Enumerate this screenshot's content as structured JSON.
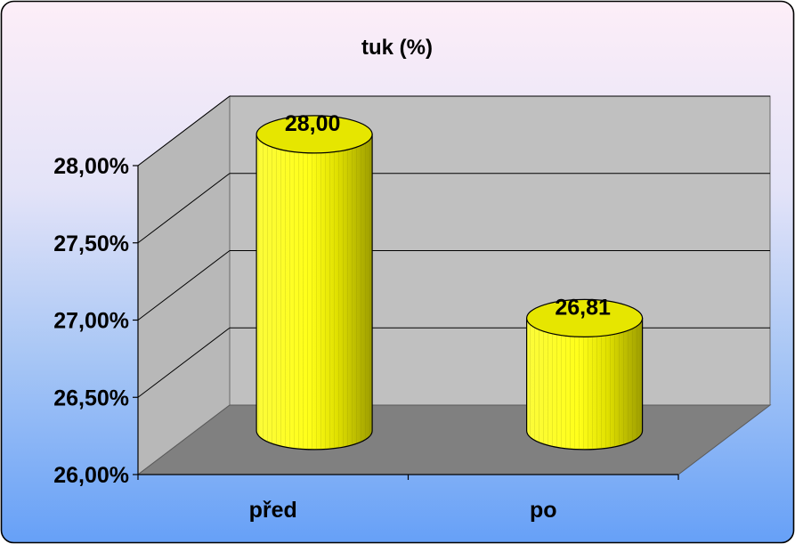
{
  "chart_data": {
    "type": "bar",
    "style": "3d-cylinder",
    "title": "tuk (%)",
    "categories": [
      "před",
      "po"
    ],
    "series": [
      {
        "values": [
          28.0,
          26.81
        ],
        "labels": [
          "28,00",
          "26,81"
        ]
      }
    ],
    "ylim": [
      26.0,
      28.0
    ],
    "yticks": [
      26.0,
      26.5,
      27.0,
      27.5,
      28.0
    ],
    "ytick_labels": [
      "26,00%",
      "26,50%",
      "27,00%",
      "27,50%",
      "28,00%"
    ],
    "grid": true,
    "legend": "none",
    "colors": {
      "bar_fill": "#ffff00",
      "bar_shade": "#a8a800",
      "wall": "#c0c0c0",
      "floor": "#808080",
      "background_top": "#fdeef7",
      "background_bottom": "#6aa2f7"
    }
  }
}
